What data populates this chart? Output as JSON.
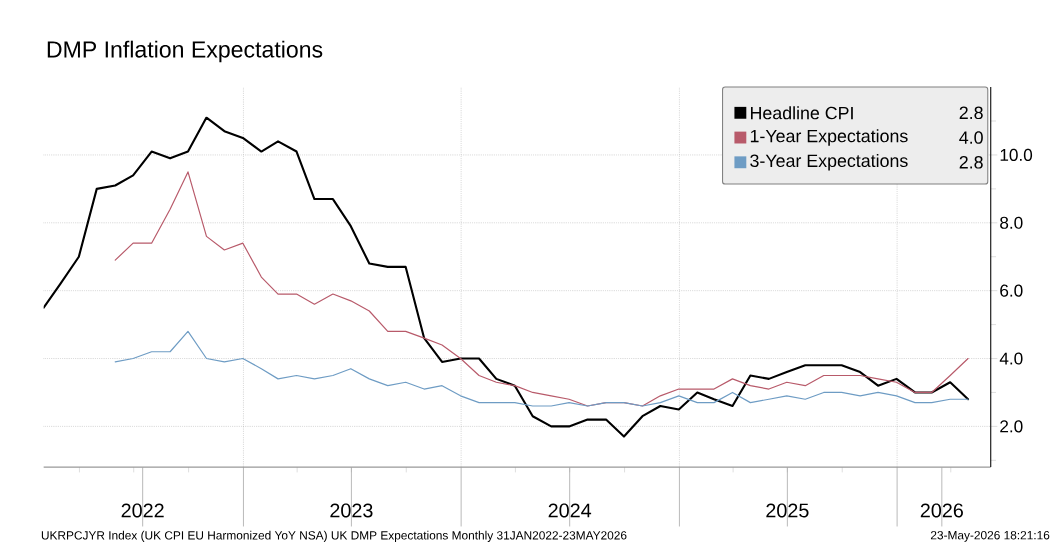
{
  "chart_data": {
    "type": "line",
    "title": "DMP Inflation Expectations",
    "x": [
      "2022-01-31",
      "2022-02-28",
      "2022-03-31",
      "2022-04-30",
      "2022-05-31",
      "2022-06-30",
      "2022-07-31",
      "2022-08-31",
      "2022-09-30",
      "2022-10-31",
      "2022-11-30",
      "2022-12-31",
      "2023-01-31",
      "2023-02-28",
      "2023-03-31",
      "2023-04-30",
      "2023-05-31",
      "2023-06-30",
      "2023-07-31",
      "2023-08-31",
      "2023-09-30",
      "2023-10-31",
      "2023-11-30",
      "2023-12-31",
      "2024-01-31",
      "2024-02-29",
      "2024-03-31",
      "2024-04-30",
      "2024-05-31",
      "2024-06-30",
      "2024-07-31",
      "2024-08-31",
      "2024-09-30",
      "2024-10-31",
      "2024-11-30",
      "2024-12-31",
      "2025-01-31",
      "2025-02-28",
      "2025-03-31",
      "2025-04-30",
      "2025-05-31",
      "2025-06-30",
      "2025-07-31",
      "2025-08-31",
      "2025-09-30",
      "2025-10-31",
      "2025-11-30",
      "2025-12-31",
      "2026-01-31",
      "2026-02-28",
      "2026-03-31",
      "2026-04-30"
    ],
    "series": [
      {
        "name": "Headline CPI",
        "color": "#000000",
        "values": [
          5.5,
          6.2,
          7.0,
          9.0,
          9.1,
          9.4,
          10.1,
          9.9,
          10.1,
          11.1,
          10.7,
          10.5,
          10.1,
          10.4,
          10.1,
          8.7,
          8.7,
          7.9,
          6.8,
          6.7,
          6.7,
          4.6,
          3.9,
          4.0,
          4.0,
          3.4,
          3.2,
          2.3,
          2.0,
          2.0,
          2.2,
          2.2,
          1.7,
          2.3,
          2.6,
          2.5,
          3.0,
          2.8,
          2.6,
          3.5,
          3.4,
          3.6,
          3.8,
          3.8,
          3.8,
          3.6,
          3.2,
          3.4,
          3.0,
          3.0,
          3.3,
          2.8
        ]
      },
      {
        "name": "1-Year Expectations",
        "color": "#b85a6a",
        "values": [
          null,
          null,
          null,
          null,
          6.9,
          7.4,
          7.4,
          8.4,
          9.5,
          7.6,
          7.2,
          7.4,
          6.4,
          5.9,
          5.9,
          5.6,
          5.9,
          5.7,
          5.4,
          4.8,
          4.8,
          4.6,
          4.4,
          4.0,
          3.5,
          3.3,
          3.2,
          3.0,
          2.9,
          2.8,
          2.6,
          2.7,
          2.7,
          2.6,
          2.9,
          3.1,
          3.1,
          3.1,
          3.4,
          3.2,
          3.1,
          3.3,
          3.2,
          3.5,
          3.5,
          3.5,
          3.4,
          3.3,
          3.0,
          3.0,
          3.5,
          4.0
        ]
      },
      {
        "name": "3-Year Expectations",
        "color": "#6e9cc4",
        "values": [
          null,
          null,
          null,
          null,
          3.9,
          4.0,
          4.2,
          4.2,
          4.8,
          4.0,
          3.9,
          4.0,
          3.7,
          3.4,
          3.5,
          3.4,
          3.5,
          3.7,
          3.4,
          3.2,
          3.3,
          3.1,
          3.2,
          2.9,
          2.7,
          2.7,
          2.7,
          2.6,
          2.6,
          2.7,
          2.6,
          2.7,
          2.7,
          2.6,
          2.7,
          2.9,
          2.7,
          2.7,
          3.0,
          2.7,
          2.8,
          2.9,
          2.8,
          3.0,
          3.0,
          2.9,
          3.0,
          2.9,
          2.7,
          2.7,
          2.8,
          2.8
        ]
      }
    ],
    "xlim": [
      "2022-01-31",
      "2026-06-07"
    ],
    "xticks": [
      {
        "value": "2022-07-16",
        "label": "2022"
      },
      {
        "value": "2023-01-01",
        "label": null
      },
      {
        "value": "2023-07-01",
        "label": "2023"
      },
      {
        "value": "2024-01-01",
        "label": null
      },
      {
        "value": "2024-07-01",
        "label": "2024"
      },
      {
        "value": "2025-01-01",
        "label": null
      },
      {
        "value": "2025-07-01",
        "label": "2025"
      },
      {
        "value": "2026-01-01",
        "label": null
      },
      {
        "value": "2026-03-17",
        "label": "2026"
      }
    ],
    "ylim": [
      0.8,
      12
    ],
    "yticks": [
      {
        "value": 1,
        "label": null
      },
      {
        "value": 2,
        "label": "2.0"
      },
      {
        "value": 3,
        "label": null
      },
      {
        "value": 4,
        "label": "4.0"
      },
      {
        "value": 5,
        "label": null
      },
      {
        "value": 6,
        "label": "6.0"
      },
      {
        "value": 7,
        "label": null
      },
      {
        "value": 8,
        "label": "8.0"
      },
      {
        "value": 9,
        "label": null
      },
      {
        "value": 10,
        "label": "10.0"
      },
      {
        "value": 11,
        "label": null
      }
    ],
    "grid": true,
    "legend": "top right",
    "line_style": "solid",
    "marker": "none",
    "annotations": [
      "2.8",
      "4.0",
      "2.8",
      "UKRPCJYR Index (UK CPI EU Harmonized YoY NSA) UK DMP Expectations Monthly 31JAN2022-23MAY2026",
      "23-May-2026 18:21:16"
    ]
  }
}
